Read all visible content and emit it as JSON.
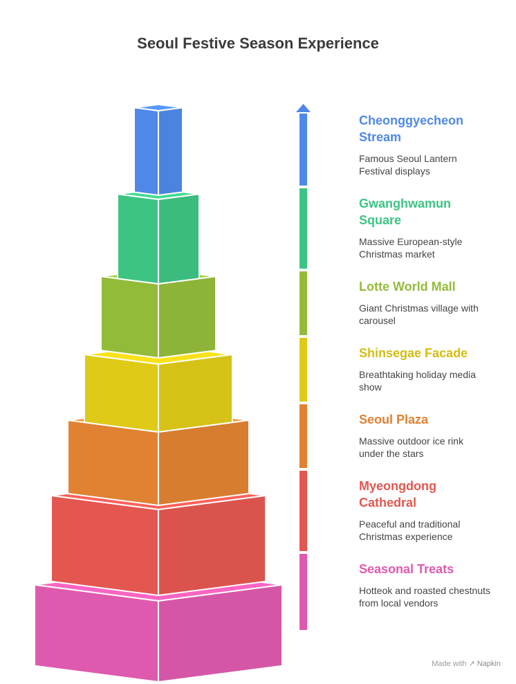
{
  "title": "Seoul Festive Season Experience",
  "levels": [
    {
      "title": "Cheonggyecheon Stream",
      "description": "Famous Seoul Lantern Festival displays",
      "color": "#4f88e8"
    },
    {
      "title": "Gwanghwamun Square",
      "description": "Massive European-style Christmas market",
      "color": "#3dc483"
    },
    {
      "title": "Lotte World Mall",
      "description": "Giant Christmas village with carousel",
      "color": "#93bb3a"
    },
    {
      "title": "Shinsegae Facade",
      "description": "Breathtaking holiday media show",
      "color": "#dfca17"
    },
    {
      "title": "Seoul Plaza",
      "description": "Massive outdoor ice rink under the stars",
      "color": "#e08232"
    },
    {
      "title": "Myeongdong Cathedral",
      "description": "Peaceful and traditional Christmas experience",
      "color": "#e35750"
    },
    {
      "title": "Seasonal Treats",
      "description": "Hotteok and roasted chestnuts from local vendors",
      "color": "#de5aae"
    }
  ],
  "watermark": {
    "prefix": "Made with",
    "brand": "Napkin"
  }
}
